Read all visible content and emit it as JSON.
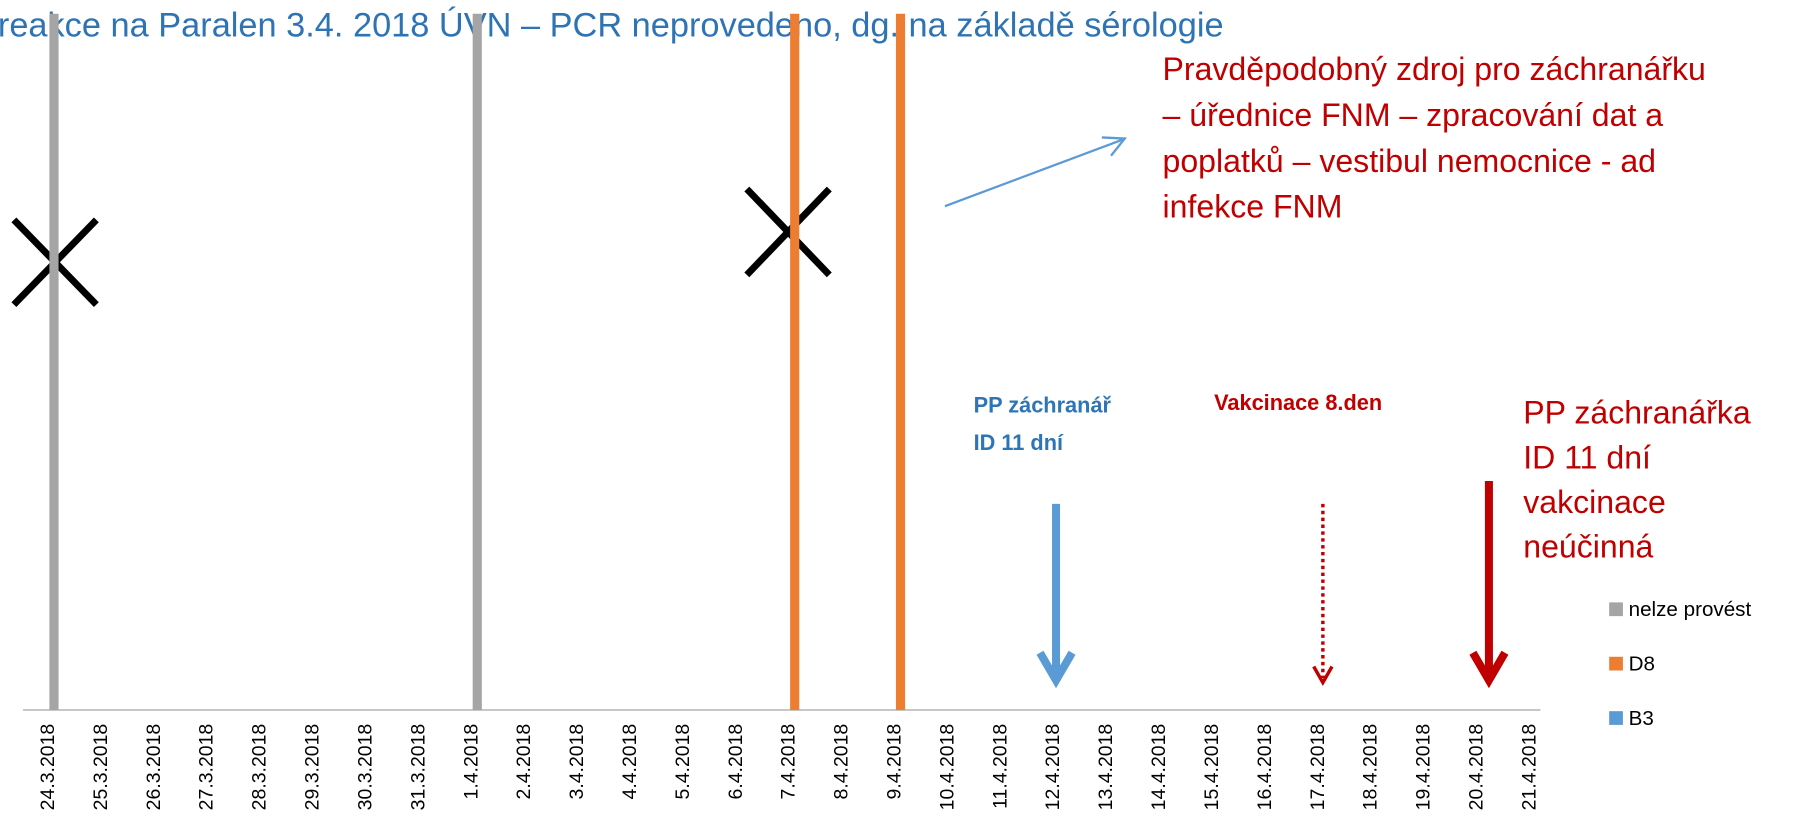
{
  "chart_data": {
    "type": "bar",
    "title": "reakce na Paralen  3.4. 2018 ÚVN – PCR neprovedeno, dg. na základě sérologie",
    "categories": [
      "24.3.2018",
      "25.3.2018",
      "26.3.2018",
      "27.3.2018",
      "28.3.2018",
      "29.3.2018",
      "30.3.2018",
      "31.3.2018",
      "1.4.2018",
      "2.4.2018",
      "3.4.2018",
      "4.4.2018",
      "5.4.2018",
      "6.4.2018",
      "7.4.2018",
      "8.4.2018",
      "9.4.2018",
      "10.4.2018",
      "11.4.2018",
      "12.4.2018",
      "13.4.2018",
      "14.4.2018",
      "15.4.2018",
      "16.4.2018",
      "17.4.2018",
      "18.4.2018",
      "19.4.2018",
      "20.4.2018",
      "21.4.2018"
    ],
    "series": [
      {
        "name": "nelze provést",
        "color": "#a5a5a5",
        "values": [
          1,
          null,
          null,
          null,
          null,
          null,
          null,
          null,
          1,
          null,
          null,
          null,
          null,
          null,
          null,
          null,
          null,
          null,
          null,
          null,
          null,
          null,
          null,
          null,
          null,
          null,
          null,
          null,
          null
        ]
      },
      {
        "name": "D8",
        "color": "#ed7d31",
        "values": [
          null,
          null,
          null,
          null,
          null,
          null,
          null,
          null,
          null,
          null,
          null,
          null,
          null,
          null,
          1,
          null,
          1,
          null,
          null,
          null,
          null,
          null,
          null,
          null,
          null,
          null,
          null,
          null,
          null
        ]
      },
      {
        "name": "B3",
        "color": "#5b9bd5",
        "values": [
          null,
          null,
          null,
          null,
          null,
          null,
          null,
          null,
          null,
          null,
          null,
          null,
          null,
          null,
          null,
          null,
          null,
          null,
          null,
          null,
          null,
          null,
          null,
          null,
          null,
          null,
          null,
          null,
          null
        ]
      }
    ],
    "ylim": [
      0,
      1
    ],
    "annotations": {
      "source": [
        "Pravděpodobný zdroj pro záchranářku",
        "– úřednice FNM – zpracování dat a",
        "poplatků – vestibul nemocnice  - ad",
        "infekce FNM"
      ],
      "case_male": [
        "PP záchranář",
        "ID 11 dní"
      ],
      "vaccination": [
        "Vakcinace 8.den"
      ],
      "case_female": [
        "PP záchranářka",
        "ID 11 dní",
        "vakcinace",
        "neúčinná"
      ]
    }
  }
}
